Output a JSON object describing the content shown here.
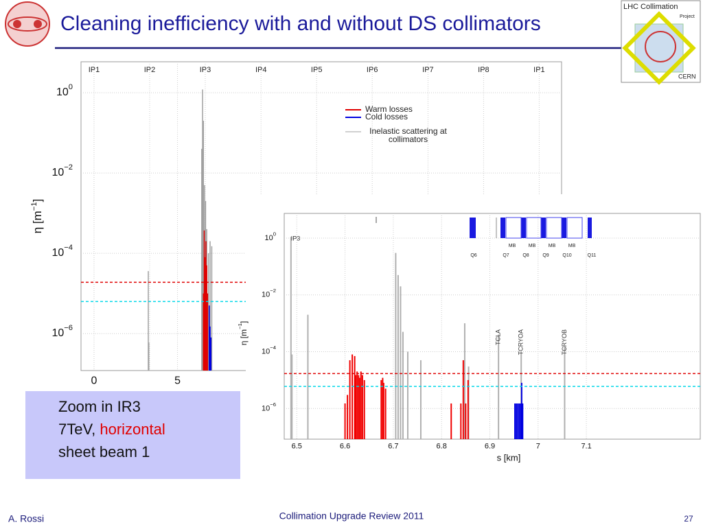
{
  "slide": {
    "title": "Cleaning inefficiency with and without DS collimators",
    "logo": {
      "title": "LHC Collimation",
      "project": "Project",
      "org": "CERN"
    },
    "box": {
      "line1": "Zoom in IR3",
      "line2a": "7TeV,",
      "line2b": "horizontal",
      "line3": "sheet beam 1"
    },
    "footer": {
      "author": "A. Rossi",
      "event": "Collimation Upgrade Review 2011",
      "page": "27"
    }
  },
  "chart_data": [
    {
      "type": "bar",
      "log_y": true,
      "ylabel": {
        "text": "η [m",
        "exponent": "−1",
        "suffix": "]"
      },
      "xlim": [
        -0.78,
        28.0
      ],
      "xticks": [
        0,
        5
      ],
      "x2ticks": [
        {
          "value": 0,
          "label": "IP1"
        },
        {
          "value": 3.33,
          "label": "IP2"
        },
        {
          "value": 6.66,
          "label": "IP3"
        },
        {
          "value": 10,
          "label": "IP4"
        },
        {
          "value": 13.33,
          "label": "IP5"
        },
        {
          "value": 16.66,
          "label": "IP6"
        },
        {
          "value": 20,
          "label": "IP7"
        },
        {
          "value": 23.33,
          "label": "IP8"
        },
        {
          "value": 26.66,
          "label": "IP1"
        }
      ],
      "ylim": [
        1.2e-07,
        5.9
      ],
      "yticks": [
        {
          "value": 1,
          "label": "10",
          "exponent": "0"
        },
        {
          "value": 0.01,
          "label": "10",
          "exponent": "−2"
        },
        {
          "value": 0.0001,
          "label": "10",
          "exponent": "−4"
        },
        {
          "value": 1e-06,
          "label": "10",
          "exponent": "−6"
        }
      ],
      "grid": true,
      "thresholds": [
        {
          "value": 1.9e-05,
          "color": "#e00000"
        },
        {
          "value": 6.3e-06,
          "color": "#00d8e8"
        }
      ],
      "series": [
        {
          "name": "Inelastic scattering at collimators",
          "color": "#a0a0a0",
          "x": [
            3.25,
            3.28,
            6.45,
            6.5,
            6.55,
            6.62,
            6.68,
            6.75,
            6.85,
            6.95,
            7.05
          ],
          "values": [
            3.6e-05,
            6e-07,
            0.04,
            1.2,
            0.2,
            0.005,
            0.002,
            0.0004,
            0.0001,
            0.0002,
            0.00015
          ]
        },
        {
          "name": "Warm losses",
          "color": "#e00000",
          "x": [
            6.55,
            6.6,
            6.65,
            6.7,
            6.75,
            6.8
          ],
          "values": [
            1e-05,
            0.00037,
            8e-05,
            0.0002,
            5e-05,
            1e-05
          ]
        },
        {
          "name": "Cold losses",
          "color": "#0000e0",
          "x": [
            6.9,
            6.95,
            7.0
          ],
          "values": [
            5e-06,
            1.5e-06,
            8e-07
          ]
        }
      ]
    },
    {
      "type": "bar",
      "log_y": true,
      "xlabel": "s [km]",
      "ylabel": {
        "text": "η [m",
        "exponent": "−1",
        "suffix": "]"
      },
      "xlim": [
        6.474,
        7.336
      ],
      "xticks": [
        6.5,
        6.6,
        6.7,
        6.8,
        6.9,
        7,
        7.1
      ],
      "ylim": [
        8.3e-08,
        7.4
      ],
      "yticks": [
        {
          "value": 1,
          "label": "10",
          "exponent": "0"
        },
        {
          "value": 0.01,
          "label": "10",
          "exponent": "−2"
        },
        {
          "value": 0.0001,
          "label": "10",
          "exponent": "−4"
        },
        {
          "value": 1e-06,
          "label": "10",
          "exponent": "−6"
        }
      ],
      "grid": true,
      "thresholds": [
        {
          "value": 1.7e-05,
          "color": "#e00000"
        },
        {
          "value": 6e-06,
          "color": "#00d8e8"
        }
      ],
      "annotations": [
        {
          "text": "TCLA",
          "x": 6.918
        },
        {
          "text": "TCRYOA",
          "x": 6.965
        },
        {
          "text": "TCRYOB",
          "x": 7.055
        },
        {
          "text": "IP3",
          "x": 6.66
        }
      ],
      "magnets": [
        "Q6",
        "Q7",
        "Q8",
        "Q9",
        "Q10",
        "Q11",
        "MB",
        "MB",
        "MB",
        "MB"
      ],
      "series": [
        {
          "name": "Inelastic scattering at collimators",
          "color": "#b0b0b0",
          "x": [
            6.488,
            6.49,
            6.523,
            6.705,
            6.71,
            6.715,
            6.72,
            6.73,
            6.757,
            6.848,
            6.856,
            6.918,
            6.965,
            7.055
          ],
          "values": [
            1.1,
            8e-05,
            0.002,
            0.3,
            0.05,
            0.02,
            0.0005,
            0.0001,
            5e-05,
            0.001,
            3e-05,
            0.0004,
            0.0001,
            0.00015
          ]
        },
        {
          "name": "Warm losses",
          "color": "#f00000",
          "x": [
            6.6,
            6.605,
            6.61,
            6.615,
            6.62,
            6.622,
            6.625,
            6.628,
            6.63,
            6.633,
            6.636,
            6.64,
            6.675,
            6.678,
            6.68,
            6.684,
            6.82,
            6.84,
            6.845,
            6.85,
            6.855
          ],
          "values": [
            1.5e-06,
            3e-06,
            5e-05,
            8e-05,
            7e-05,
            1.5e-05,
            2e-05,
            1.5e-05,
            1.2e-05,
            2e-05,
            1.5e-05,
            1e-05,
            1e-05,
            1.2e-05,
            8e-06,
            5e-06,
            1.5e-06,
            1.5e-06,
            5e-05,
            1.5e-06,
            1e-05
          ]
        },
        {
          "name": "Cold losses",
          "color": "#0000e0",
          "x": [
            6.952,
            6.955,
            6.958,
            6.961,
            6.964,
            6.966,
            6.968
          ],
          "values": [
            1.5e-06,
            1.5e-06,
            1.5e-06,
            1.5e-06,
            1.5e-06,
            8e-06,
            1.5e-06
          ]
        }
      ]
    }
  ]
}
